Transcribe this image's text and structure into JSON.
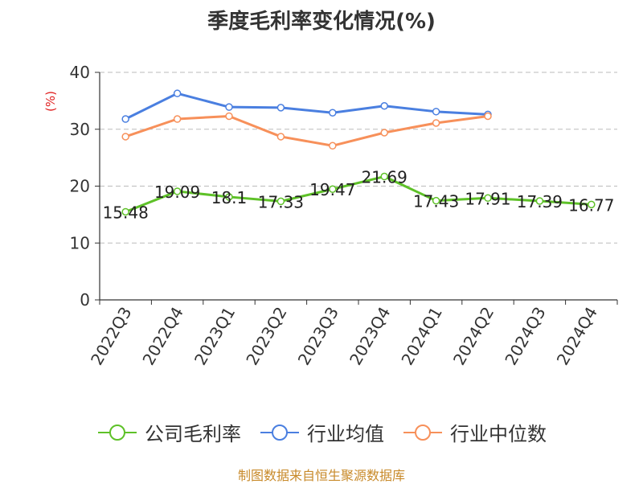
{
  "chart_data": {
    "type": "line",
    "title": "季度毛利率变化情况(%)",
    "ylabel": "(%)",
    "xlabel": "",
    "categories": [
      "2022Q3",
      "2022Q4",
      "2023Q1",
      "2023Q2",
      "2023Q3",
      "2023Q4",
      "2024Q1",
      "2024Q2",
      "2024Q3",
      "2024Q4"
    ],
    "ylim": [
      0,
      40
    ],
    "yticks": [
      0,
      10,
      20,
      30,
      40
    ],
    "grid": true,
    "legend_position": "bottom",
    "series": [
      {
        "name": "公司毛利率",
        "color": "#5ec128",
        "values": [
          15.48,
          19.09,
          18.1,
          17.33,
          19.47,
          21.69,
          17.43,
          17.91,
          17.39,
          16.77
        ],
        "value_labels": [
          "15.48",
          "19.09",
          "18.1",
          "17.33",
          "19.47",
          "21.69",
          "17.43",
          "17.91",
          "17.39",
          "16.77"
        ]
      },
      {
        "name": "行业均值",
        "color": "#4a7fe0",
        "values": [
          31.8,
          36.3,
          33.9,
          33.8,
          32.9,
          34.1,
          33.1,
          32.6,
          null,
          null
        ]
      },
      {
        "name": "行业中位数",
        "color": "#f7905a",
        "values": [
          28.7,
          31.8,
          32.3,
          28.7,
          27.1,
          29.4,
          31.1,
          32.3,
          null,
          null
        ]
      }
    ]
  },
  "footer": {
    "source": "制图数据来自恒生聚源数据库"
  }
}
